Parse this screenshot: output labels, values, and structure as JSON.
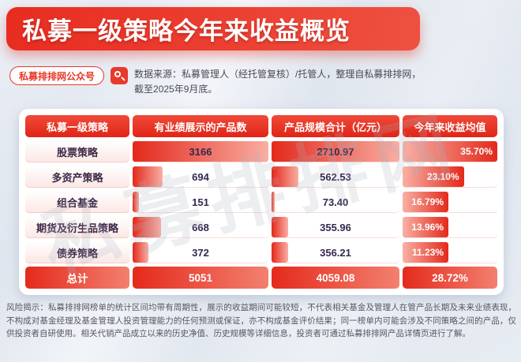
{
  "page": {
    "title": "私募一级策略今年来收益概览",
    "badge_label": "私募排排网公众号",
    "source_line1": "数据来源：私募管理人（经托管复核）/托管人，整理自私募排排网，",
    "source_line2": "截至2025年9月底。",
    "watermark": "私募排排网",
    "footer": "风险揭示：私募排排网榜单的统计区间均带有周期性，展示的收益期间可能较短，不代表相关基金及管理人在管产品长期及未来业绩表现，不构成对基金经理及基金管理人投资管理能力的任何预测或保证，亦不构成基金评价结果；同一榜单内可能会涉及不同策略之间的产品，仅供投资者自研使用。相关代销产品成立以来的历史净值、历史规模等详细信息，投资者可通过私募排排网产品详情页进行了解。"
  },
  "chart_data": {
    "type": "table",
    "title": "私募一级策略今年来收益概览",
    "columns": [
      "私募一级策略",
      "有业绩展示的产品数",
      "产品规模合计（亿元）",
      "今年来收益均值"
    ],
    "rows": [
      {
        "strategy": "股票策略",
        "count": "3166",
        "scale": "2710.97",
        "return": "35.70%"
      },
      {
        "strategy": "多资产策略",
        "count": "694",
        "scale": "562.53",
        "return": "23.10%"
      },
      {
        "strategy": "组合基金",
        "count": "151",
        "scale": "73.40",
        "return": "16.79%"
      },
      {
        "strategy": "期货及衍生品策略",
        "count": "668",
        "scale": "355.96",
        "return": "13.96%"
      },
      {
        "strategy": "债券策略",
        "count": "372",
        "scale": "356.21",
        "return": "11.23%"
      }
    ],
    "total": {
      "strategy": "总计",
      "count": "5051",
      "scale": "4059.08",
      "return": "28.72%"
    },
    "accent_color": "#e8392b"
  }
}
